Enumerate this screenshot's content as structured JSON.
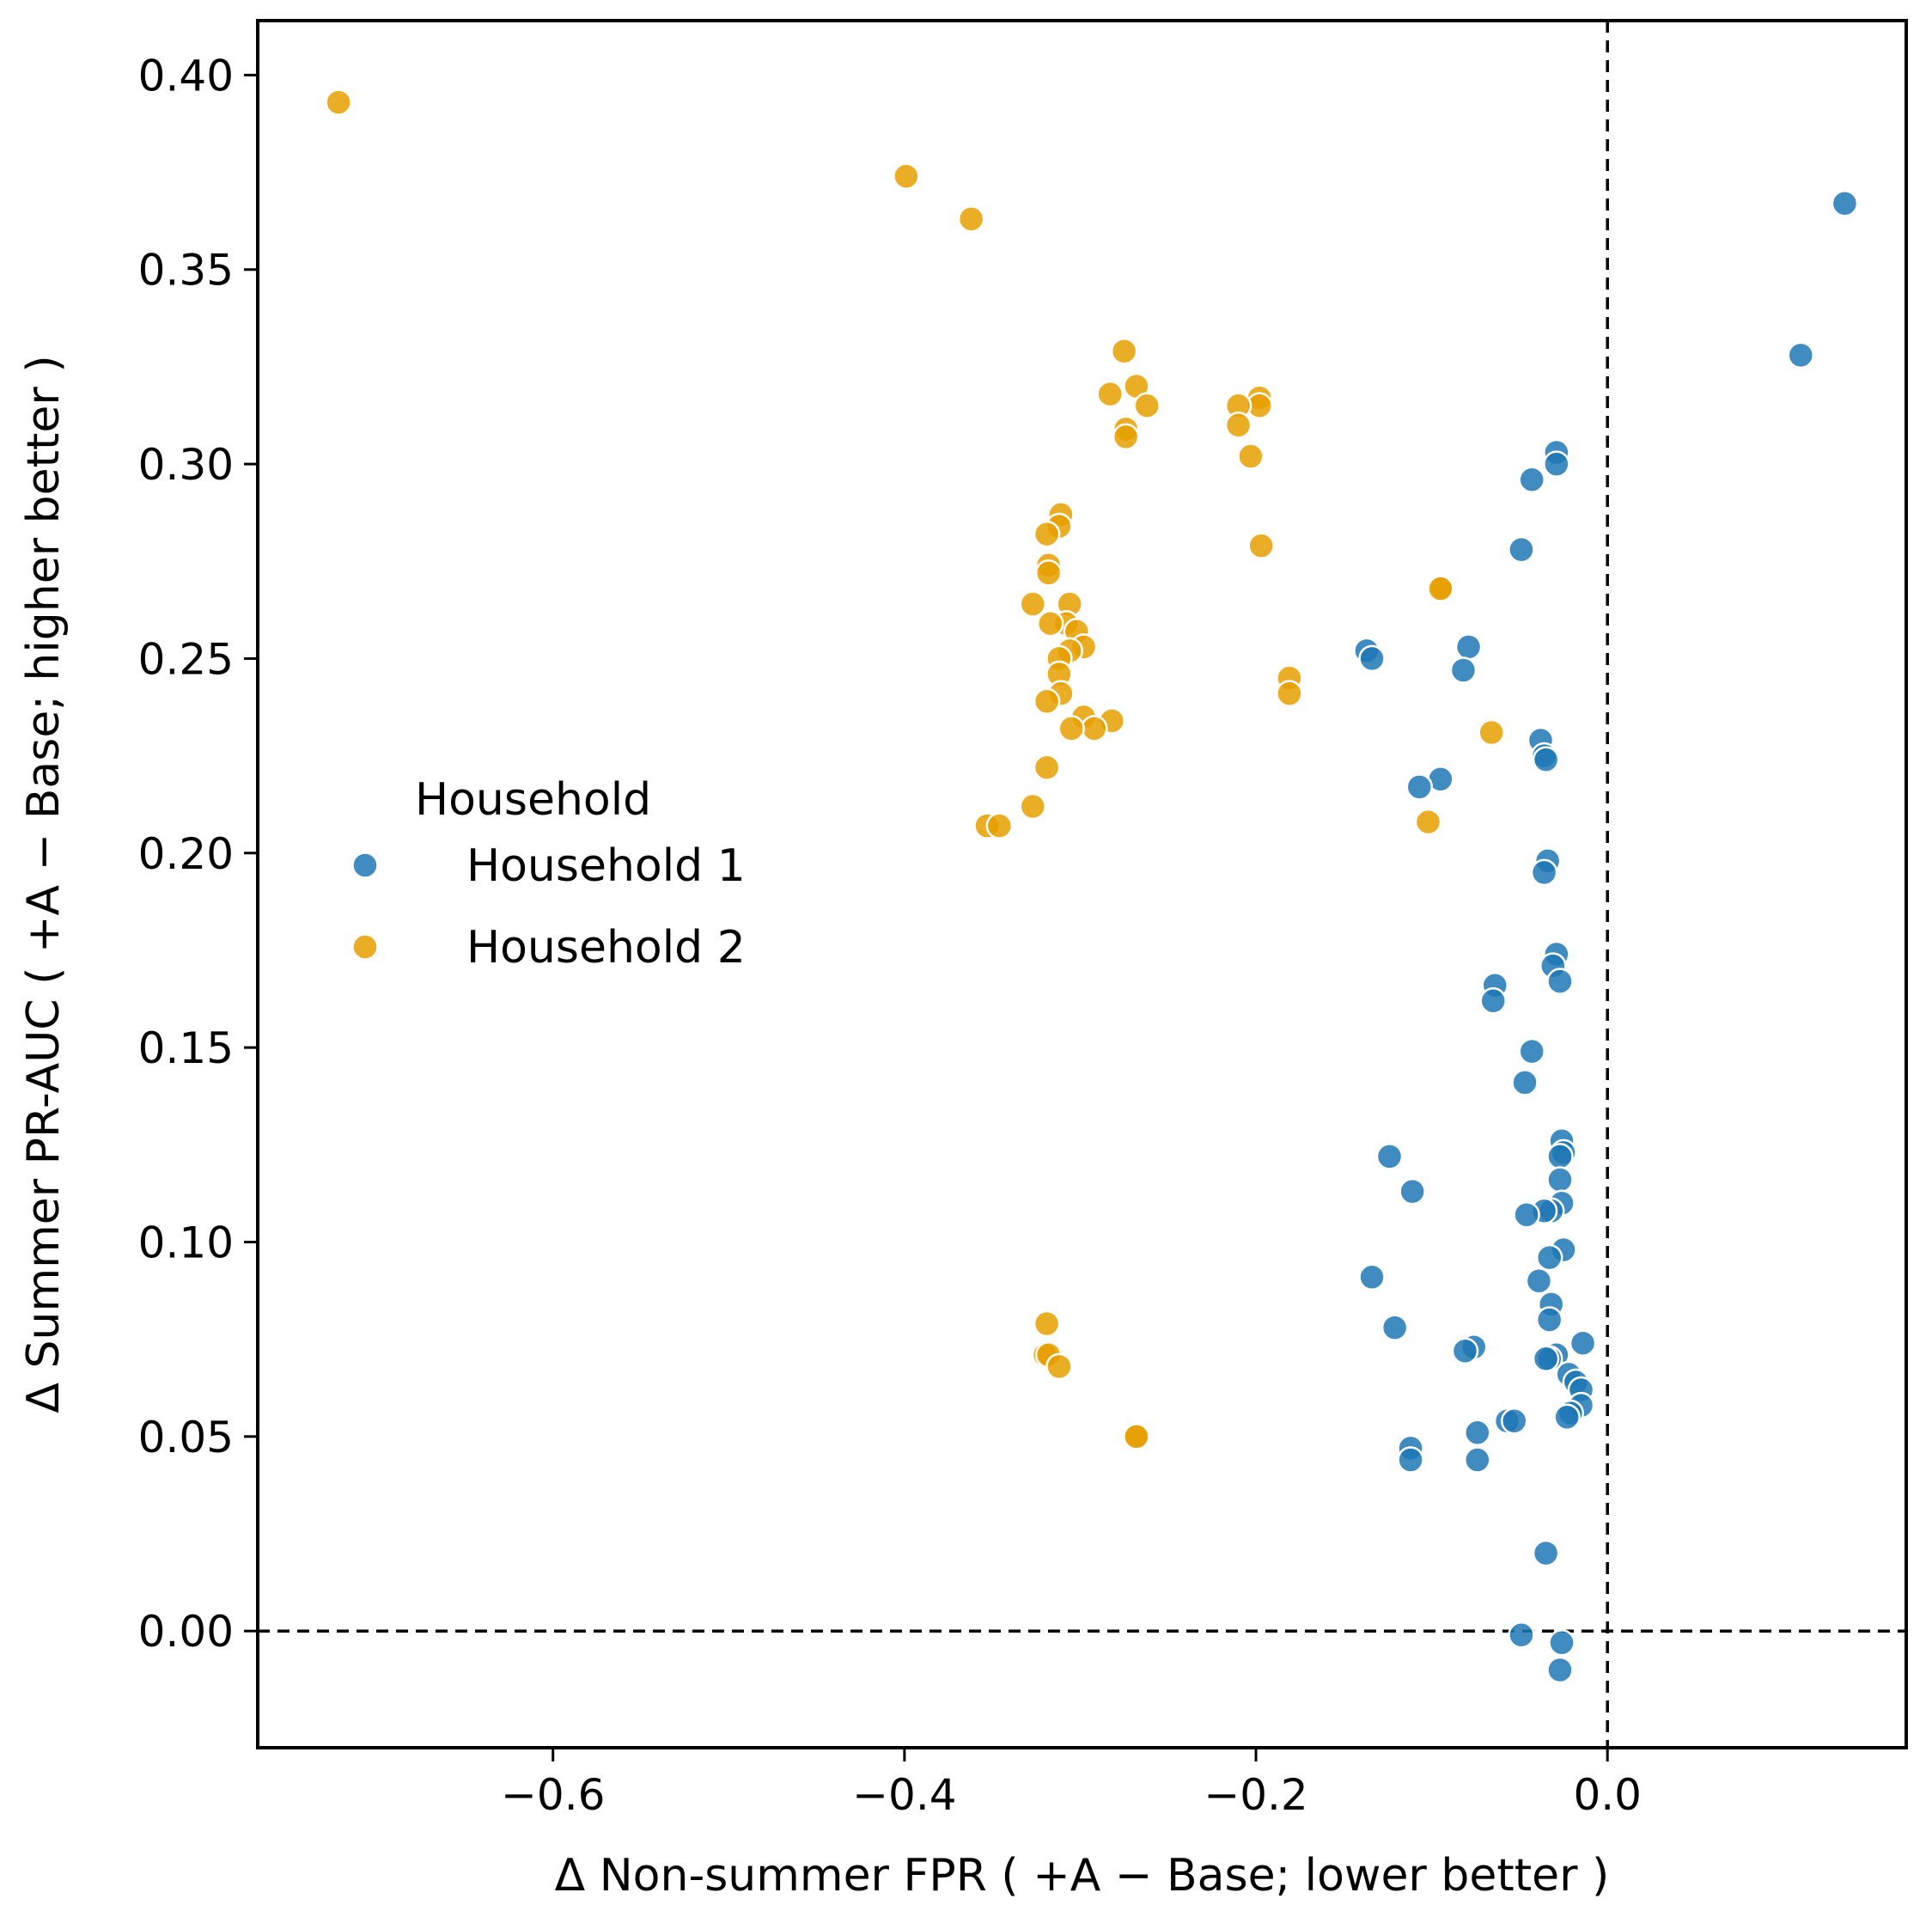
{
  "chart_data": {
    "type": "scatter",
    "title": "",
    "xlabel": "Δ Non-summer FPR ( +A − Base; lower better )",
    "ylabel": "Δ Summer PR-AUC ( +A − Base; higher better )",
    "xlim": [
      -0.768,
      0.17
    ],
    "ylim": [
      -0.03,
      0.414
    ],
    "xticks": [
      -0.6,
      -0.4,
      -0.2,
      0.0
    ],
    "xtick_labels": [
      "−0.6",
      "−0.4",
      "−0.2",
      "0.0"
    ],
    "yticks": [
      0.0,
      0.05,
      0.1,
      0.15,
      0.2,
      0.25,
      0.3,
      0.35,
      0.4
    ],
    "ytick_labels": [
      "0.00",
      "0.05",
      "0.10",
      "0.15",
      "0.20",
      "0.25",
      "0.30",
      "0.35",
      "0.40"
    ],
    "reference_lines": {
      "x": 0.0,
      "y": 0.0,
      "style": "dashed"
    },
    "grid": false,
    "legend": {
      "title": "Household",
      "placement": "center-left"
    },
    "series": [
      {
        "name": "Household 1",
        "color": "#1f77b4",
        "points": [
          [
            0.135,
            0.367
          ],
          [
            0.11,
            0.328
          ],
          [
            -0.029,
            0.303
          ],
          [
            -0.029,
            0.3
          ],
          [
            -0.043,
            0.296
          ],
          [
            -0.049,
            0.278
          ],
          [
            -0.079,
            0.253
          ],
          [
            -0.137,
            0.252
          ],
          [
            -0.134,
            0.25
          ],
          [
            -0.082,
            0.247
          ],
          [
            -0.038,
            0.229
          ],
          [
            -0.036,
            0.225
          ],
          [
            -0.035,
            0.224
          ],
          [
            -0.095,
            0.219
          ],
          [
            -0.107,
            0.217
          ],
          [
            -0.034,
            0.198
          ],
          [
            -0.036,
            0.195
          ],
          [
            -0.029,
            0.174
          ],
          [
            -0.031,
            0.171
          ],
          [
            -0.027,
            0.167
          ],
          [
            -0.064,
            0.166
          ],
          [
            -0.065,
            0.162
          ],
          [
            -0.043,
            0.149
          ],
          [
            -0.047,
            0.141
          ],
          [
            -0.026,
            0.126
          ],
          [
            -0.025,
            0.123
          ],
          [
            -0.027,
            0.122
          ],
          [
            -0.124,
            0.122
          ],
          [
            -0.027,
            0.116
          ],
          [
            -0.111,
            0.113
          ],
          [
            -0.026,
            0.11
          ],
          [
            -0.032,
            0.108
          ],
          [
            -0.036,
            0.108
          ],
          [
            -0.046,
            0.107
          ],
          [
            -0.025,
            0.098
          ],
          [
            -0.033,
            0.096
          ],
          [
            -0.134,
            0.091
          ],
          [
            -0.039,
            0.09
          ],
          [
            -0.032,
            0.084
          ],
          [
            -0.033,
            0.08
          ],
          [
            -0.121,
            0.078
          ],
          [
            -0.014,
            0.074
          ],
          [
            -0.076,
            0.073
          ],
          [
            -0.081,
            0.072
          ],
          [
            -0.029,
            0.071
          ],
          [
            -0.033,
            0.07
          ],
          [
            -0.035,
            0.07
          ],
          [
            -0.022,
            0.066
          ],
          [
            -0.018,
            0.064
          ],
          [
            -0.015,
            0.062
          ],
          [
            -0.015,
            0.058
          ],
          [
            -0.021,
            0.056
          ],
          [
            -0.023,
            0.055
          ],
          [
            -0.057,
            0.054
          ],
          [
            -0.053,
            0.054
          ],
          [
            -0.074,
            0.051
          ],
          [
            -0.112,
            0.047
          ],
          [
            -0.112,
            0.044
          ],
          [
            -0.074,
            0.044
          ],
          [
            -0.035,
            0.02
          ],
          [
            -0.049,
            -0.001
          ],
          [
            -0.026,
            -0.003
          ],
          [
            -0.027,
            -0.01
          ]
        ]
      },
      {
        "name": "Household 2",
        "color": "#e69f00",
        "points": [
          [
            -0.722,
            0.393
          ],
          [
            -0.399,
            0.374
          ],
          [
            -0.362,
            0.363
          ],
          [
            -0.275,
            0.329
          ],
          [
            -0.268,
            0.32
          ],
          [
            -0.283,
            0.318
          ],
          [
            -0.262,
            0.315
          ],
          [
            -0.274,
            0.309
          ],
          [
            -0.274,
            0.307
          ],
          [
            -0.198,
            0.317
          ],
          [
            -0.198,
            0.315
          ],
          [
            -0.21,
            0.315
          ],
          [
            -0.21,
            0.31
          ],
          [
            -0.203,
            0.302
          ],
          [
            -0.197,
            0.279
          ],
          [
            -0.311,
            0.287
          ],
          [
            -0.312,
            0.284
          ],
          [
            -0.319,
            0.282
          ],
          [
            -0.318,
            0.274
          ],
          [
            -0.318,
            0.272
          ],
          [
            -0.094,
            0.268
          ],
          [
            -0.095,
            0.268
          ],
          [
            -0.306,
            0.264
          ],
          [
            -0.327,
            0.264
          ],
          [
            -0.308,
            0.259
          ],
          [
            -0.317,
            0.259
          ],
          [
            -0.302,
            0.257
          ],
          [
            -0.298,
            0.253
          ],
          [
            -0.306,
            0.252
          ],
          [
            -0.312,
            0.25
          ],
          [
            -0.312,
            0.246
          ],
          [
            -0.181,
            0.245
          ],
          [
            -0.181,
            0.241
          ],
          [
            -0.311,
            0.241
          ],
          [
            -0.319,
            0.239
          ],
          [
            -0.298,
            0.235
          ],
          [
            -0.282,
            0.234
          ],
          [
            -0.292,
            0.232
          ],
          [
            -0.305,
            0.232
          ],
          [
            -0.066,
            0.231
          ],
          [
            -0.319,
            0.222
          ],
          [
            -0.327,
            0.212
          ],
          [
            -0.102,
            0.208
          ],
          [
            -0.353,
            0.207
          ],
          [
            -0.346,
            0.207
          ],
          [
            -0.319,
            0.079
          ],
          [
            -0.32,
            0.071
          ],
          [
            -0.318,
            0.071
          ],
          [
            -0.312,
            0.068
          ],
          [
            -0.268,
            0.05
          ],
          [
            -0.268,
            0.05
          ]
        ]
      }
    ]
  }
}
